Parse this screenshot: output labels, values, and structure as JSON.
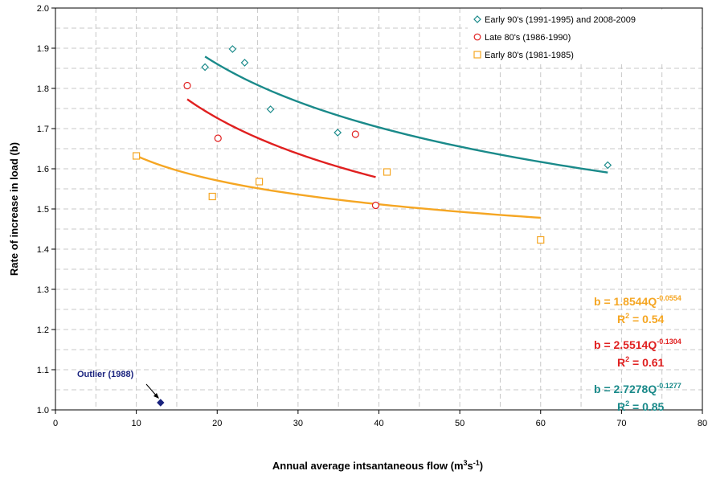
{
  "chart_data": {
    "type": "scatter",
    "xlabel_main": "Annual average intsantaneous flow (m",
    "xlabel_sup1": "3",
    "xlabel_mid": "s",
    "xlabel_sup2": "-1",
    "xlabel_end": ")",
    "ylabel": "Rate of increase in load (b)",
    "xlim": [
      0,
      80
    ],
    "ylim": [
      1.0,
      2.0
    ],
    "x_ticks": [
      "0",
      "10",
      "20",
      "30",
      "40",
      "50",
      "60",
      "70",
      "80"
    ],
    "y_ticks": [
      "1.0",
      "1.1",
      "1.2",
      "1.3",
      "1.4",
      "1.5",
      "1.6",
      "1.7",
      "1.8",
      "1.9",
      "2.0"
    ],
    "grid": "dashed",
    "legend_position": "top-right",
    "series": [
      {
        "name": "Early 90's (1991-1995) and 2008-2009",
        "marker": "diamond",
        "color": "#1a8a8a",
        "points": [
          [
            18.5,
            1.853
          ],
          [
            21.9,
            1.898
          ],
          [
            23.4,
            1.864
          ],
          [
            26.6,
            1.748
          ],
          [
            34.9,
            1.69
          ],
          [
            68.3,
            1.609
          ]
        ],
        "fit": {
          "a": 2.7278,
          "b": -0.1277,
          "x_start": 18.5,
          "x_end": 68.3
        }
      },
      {
        "name": "Late 80's (1986-1990)",
        "marker": "circle",
        "color": "#e02020",
        "points": [
          [
            16.3,
            1.807
          ],
          [
            20.1,
            1.676
          ],
          [
            37.1,
            1.686
          ],
          [
            39.6,
            1.509
          ]
        ],
        "fit": {
          "a": 2.5514,
          "b": -0.1304,
          "x_start": 16.3,
          "x_end": 39.6
        }
      },
      {
        "name": "Early 80's (1981-1985)",
        "marker": "square",
        "color": "#f5a623",
        "points": [
          [
            10.0,
            1.632
          ],
          [
            19.4,
            1.531
          ],
          [
            25.2,
            1.568
          ],
          [
            41.0,
            1.592
          ],
          [
            60.0,
            1.423
          ]
        ],
        "fit": {
          "a": 1.8544,
          "b": -0.0554,
          "x_start": 10.0,
          "x_end": 60.0
        }
      }
    ],
    "outlier": {
      "label": "Outlier (1988)",
      "point": [
        13.0,
        1.018
      ],
      "color": "#1a237e"
    },
    "equations": [
      {
        "color": "#f5a623",
        "eq_main": "b = 1.8544Q",
        "eq_exp": "-0.0554",
        "r2_main": "R",
        "r2_sup": "2",
        "r2_rest": " = 0.54"
      },
      {
        "color": "#e02020",
        "eq_main": "b = 2.5514Q",
        "eq_exp": "-0.1304",
        "r2_main": "R",
        "r2_sup": "2",
        "r2_rest": " = 0.61"
      },
      {
        "color": "#1a8a8a",
        "eq_main": "b = 2.7278Q",
        "eq_exp": "-0.1277",
        "r2_main": "R",
        "r2_sup": "2",
        "r2_rest": " = 0.85"
      }
    ]
  }
}
